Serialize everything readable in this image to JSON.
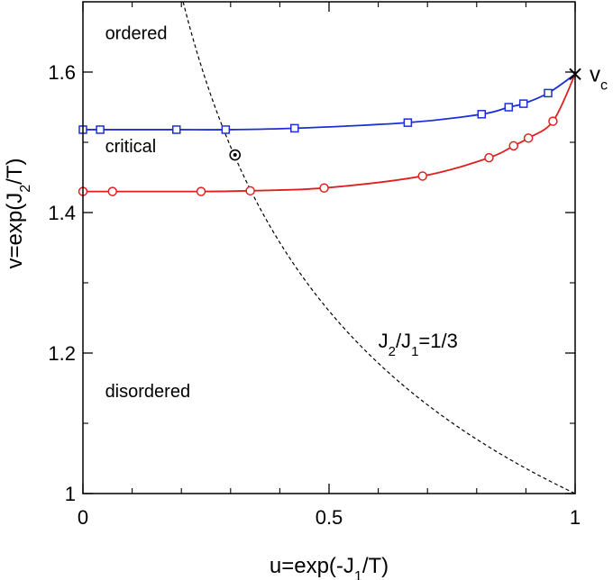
{
  "chart_data": {
    "type": "line",
    "xlabel": {
      "prefix": "u=exp(-J",
      "sub": "1",
      "suffix": "/T)"
    },
    "ylabel": {
      "prefix": "v=exp(J",
      "sub": "2",
      "suffix": "/T)"
    },
    "xlim": [
      0,
      1
    ],
    "ylim": [
      1.0,
      1.7
    ],
    "x_ticks": [
      0,
      0.5,
      1
    ],
    "x_tick_labels": [
      "0",
      "0.5",
      "1"
    ],
    "y_ticks": [
      1.0,
      1.2,
      1.4,
      1.6
    ],
    "y_tick_labels": [
      "1",
      "1.2",
      "1.4",
      "1.6"
    ],
    "grid": false,
    "region_labels": [
      {
        "text": "ordered",
        "x": 0.045,
        "y": 1.647
      },
      {
        "text": "critical",
        "x": 0.045,
        "y": 1.486
      },
      {
        "text": "disordered",
        "x": 0.045,
        "y": 1.137
      }
    ],
    "series": [
      {
        "color": "#1a2fd6",
        "marker": "square",
        "x": [
          0.0,
          0.035,
          0.19,
          0.29,
          0.43,
          0.66,
          0.81,
          0.865,
          0.895,
          0.945,
          1.0
        ],
        "y": [
          1.518,
          1.518,
          1.518,
          1.518,
          1.52,
          1.528,
          1.54,
          1.55,
          1.555,
          1.57,
          1.597
        ]
      },
      {
        "color": "#e02020",
        "marker": "circle",
        "x": [
          0.0,
          0.06,
          0.24,
          0.34,
          0.49,
          0.69,
          0.825,
          0.875,
          0.905,
          0.955,
          1.0
        ],
        "y": [
          1.43,
          1.43,
          1.43,
          1.431,
          1.435,
          1.452,
          1.478,
          1.495,
          1.506,
          1.53,
          1.597
        ]
      }
    ],
    "dashed_curve": {
      "label": {
        "prefix": "J",
        "sub1": "2",
        "mid": "/J",
        "sub2": "1",
        "suffix": "=1/3"
      },
      "equation": "v = u^(-1/3)",
      "color": "#000000",
      "label_at": {
        "x": 0.6,
        "y": 1.208
      }
    },
    "special_points": [
      {
        "name": "critical-endpoint",
        "x": 1.0,
        "y": 1.597,
        "marker": "x",
        "label": "v",
        "label_sub": "c"
      },
      {
        "name": "intersection-point",
        "x": 0.309,
        "y": 1.482,
        "marker": "circle-dot"
      }
    ]
  }
}
